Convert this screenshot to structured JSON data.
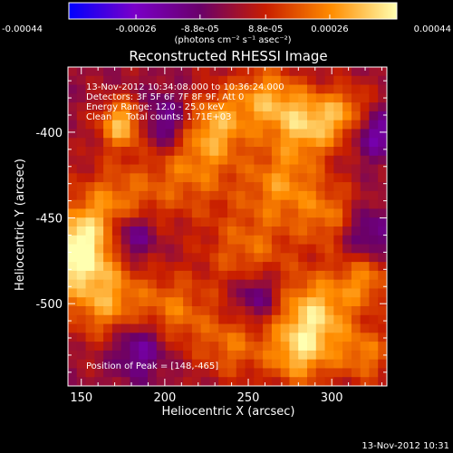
{
  "colorbar": {
    "tick_labels": [
      "-0.00044",
      "-0.00026",
      "-8.8e-05",
      "8.8e-05",
      "0.00026",
      "0.00044"
    ],
    "unit_label": "(photons cm⁻² s⁻¹ asec⁻²)",
    "range": [
      -0.00044,
      0.00044
    ],
    "colors": [
      "#0000ff",
      "#7a00c8",
      "#6a006a",
      "#c81e00",
      "#ff8c00",
      "#ffffb0"
    ]
  },
  "chart_data": {
    "type": "heatmap",
    "title": "Reconstructed RHESSI Image",
    "xlabel": "Heliocentric X (arcsec)",
    "ylabel": "Heliocentric Y (arcsec)",
    "xlim": [
      142,
      333
    ],
    "ylim": [
      -548,
      -362
    ],
    "xticks": [
      150,
      200,
      250,
      300
    ],
    "yticks": [
      -400,
      -450,
      -500
    ],
    "annotations": [
      "13-Nov-2012 10:34:08.000 to 10:36:24.000",
      "Detectors: 3F 5F 6F 7F 8F 9F, Att 0",
      "Energy Range: 12.0 - 25.0 keV",
      "Clean     Total counts: 1.71E+03"
    ],
    "peak_label": "Position of Peak = [148,-465]",
    "peak_position": [
      148,
      -465
    ],
    "blobs": [
      {
        "x": 145,
        "y": -470,
        "r": 16,
        "amp": 1.0
      },
      {
        "x": 175,
        "y": -395,
        "r": 10,
        "amp": 0.8
      },
      {
        "x": 170,
        "y": -445,
        "r": 18,
        "amp": 0.55
      },
      {
        "x": 215,
        "y": -420,
        "r": 20,
        "amp": 0.5
      },
      {
        "x": 230,
        "y": -395,
        "r": 14,
        "amp": 0.55
      },
      {
        "x": 260,
        "y": -380,
        "r": 14,
        "amp": 0.6
      },
      {
        "x": 285,
        "y": -395,
        "r": 14,
        "amp": 0.7
      },
      {
        "x": 310,
        "y": -390,
        "r": 12,
        "amp": 0.55
      },
      {
        "x": 270,
        "y": -430,
        "r": 16,
        "amp": 0.55
      },
      {
        "x": 300,
        "y": -450,
        "r": 14,
        "amp": 0.5
      },
      {
        "x": 250,
        "y": -470,
        "r": 18,
        "amp": 0.45
      },
      {
        "x": 165,
        "y": -500,
        "r": 16,
        "amp": 0.6
      },
      {
        "x": 205,
        "y": -505,
        "r": 16,
        "amp": 0.5
      },
      {
        "x": 290,
        "y": -505,
        "r": 16,
        "amp": 0.75
      },
      {
        "x": 320,
        "y": -485,
        "r": 12,
        "amp": 0.55
      },
      {
        "x": 280,
        "y": -530,
        "r": 14,
        "amp": 0.65
      },
      {
        "x": 320,
        "y": -530,
        "r": 12,
        "amp": 0.5
      },
      {
        "x": 240,
        "y": -525,
        "r": 14,
        "amp": 0.45
      },
      {
        "x": 200,
        "y": -395,
        "r": -12,
        "amp": -0.6
      },
      {
        "x": 180,
        "y": -460,
        "r": -10,
        "amp": -0.7
      },
      {
        "x": 320,
        "y": -460,
        "r": -12,
        "amp": -0.5
      },
      {
        "x": 185,
        "y": -525,
        "r": -12,
        "amp": -0.55
      },
      {
        "x": 255,
        "y": -495,
        "r": -10,
        "amp": -0.5
      },
      {
        "x": 325,
        "y": -400,
        "r": -10,
        "amp": -0.6
      }
    ]
  },
  "timestamp": "13-Nov-2012 10:31"
}
